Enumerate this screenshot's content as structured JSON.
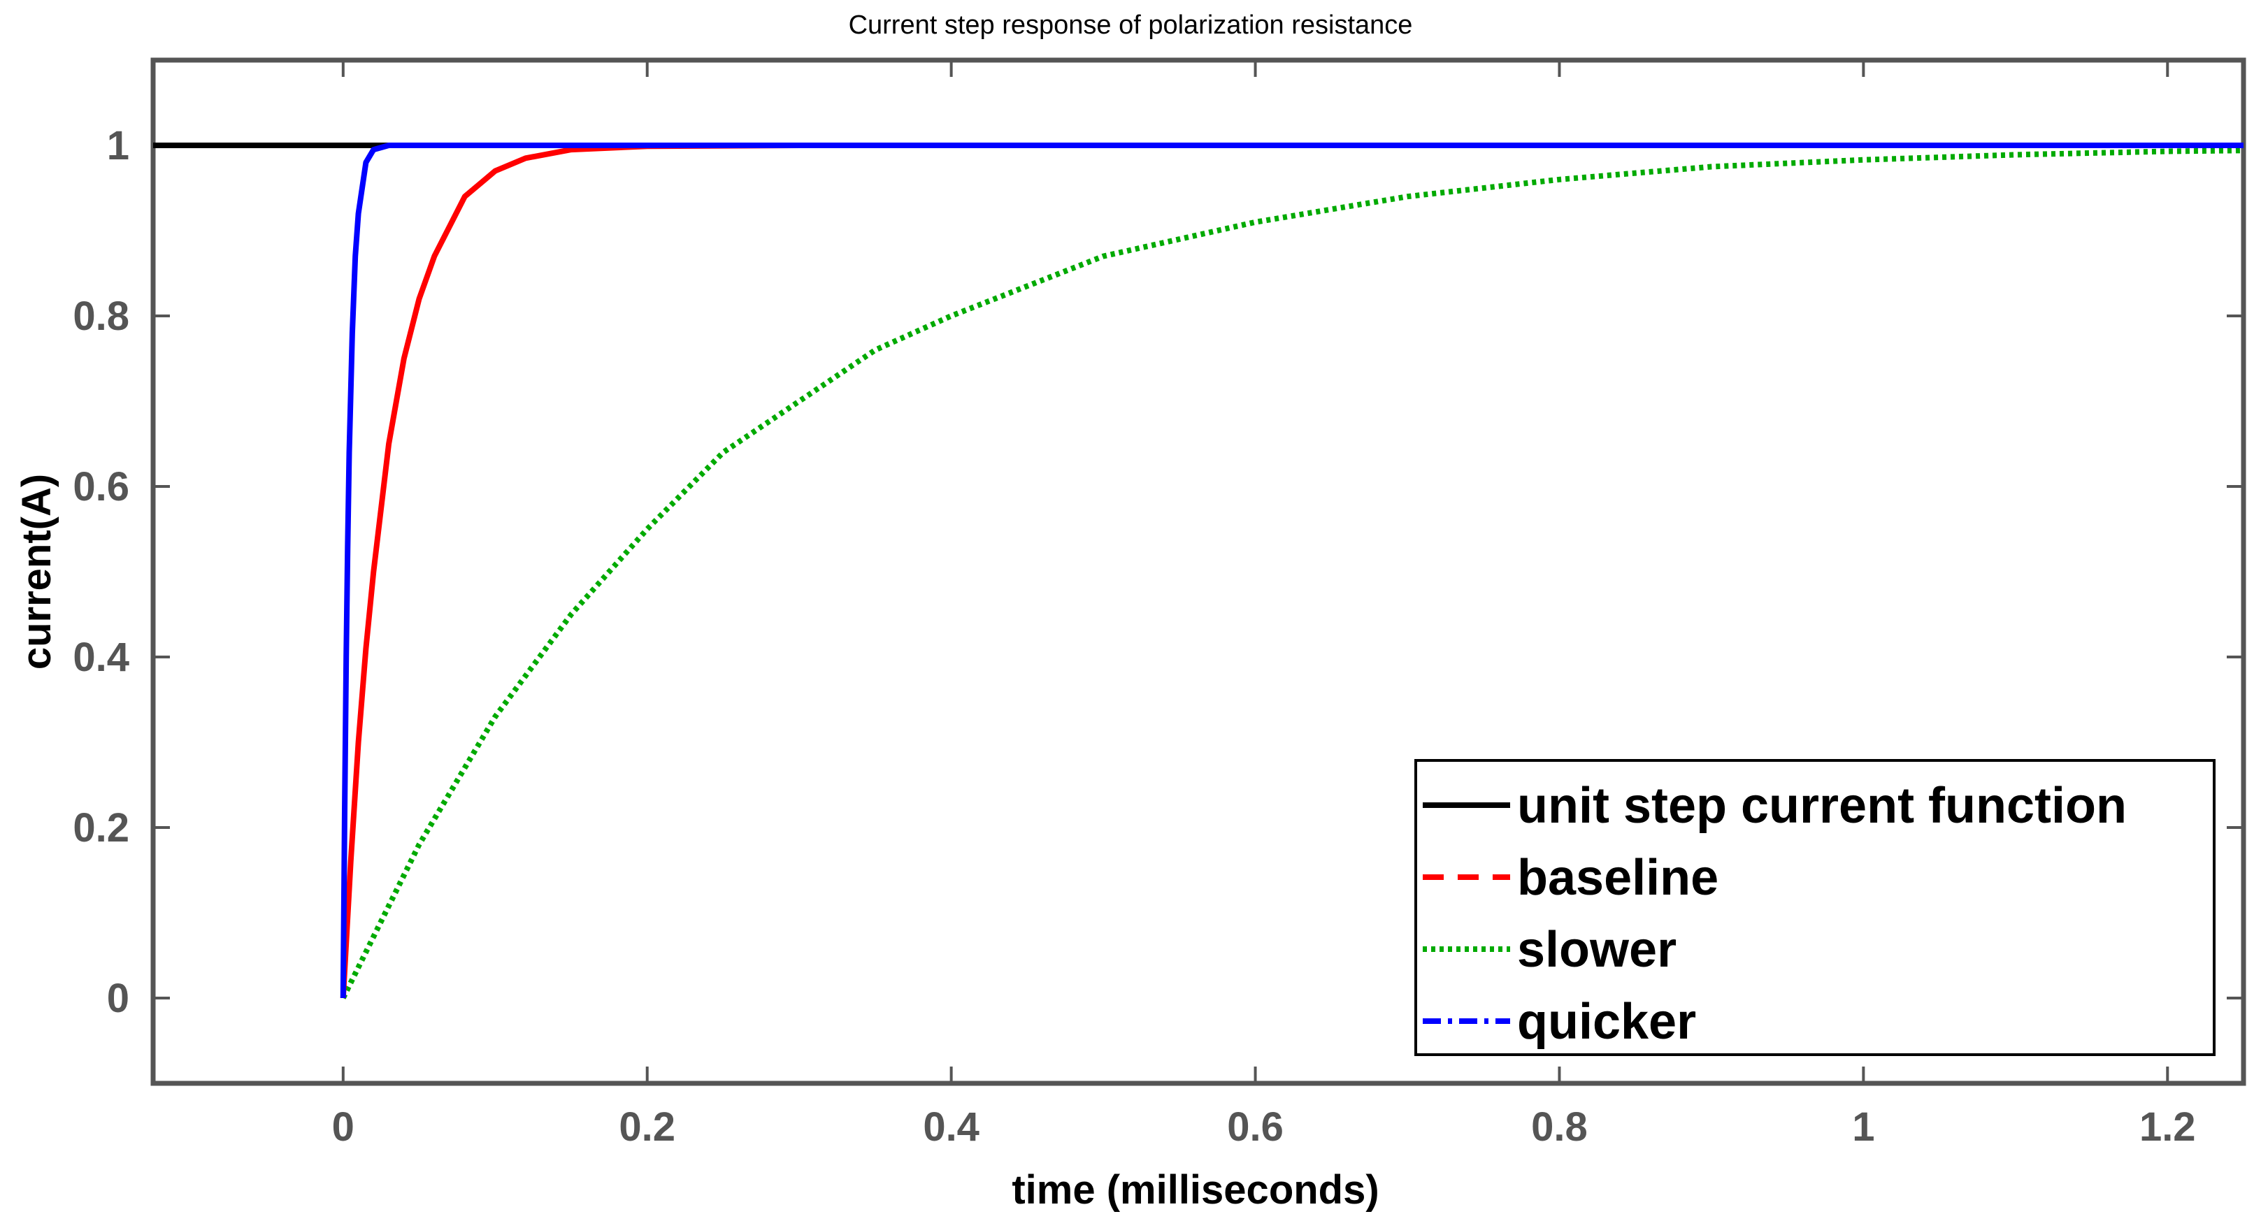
{
  "chart_data": {
    "type": "line",
    "title": "Current step response of polarization resistance",
    "xlabel": "time (milliseconds)",
    "ylabel": "current(A)",
    "xlim": [
      -0.125,
      1.25
    ],
    "ylim": [
      -0.1,
      1.1
    ],
    "xticks": [
      0,
      0.2,
      0.4,
      0.6,
      0.8,
      1,
      1.2
    ],
    "xtick_labels": [
      "0",
      "0.2",
      "0.4",
      "0.6",
      "0.8",
      "1",
      "1.2"
    ],
    "yticks": [
      0,
      0.2,
      0.4,
      0.6,
      0.8,
      1
    ],
    "ytick_labels": [
      "0",
      "0.2",
      "0.4",
      "0.6",
      "0.8",
      "1"
    ],
    "grid": false,
    "legend_position": "bottom-right",
    "series": [
      {
        "name": "unit step current function",
        "color": "#000000",
        "style": "solid",
        "x": [
          -0.125,
          1.25
        ],
        "y": [
          1,
          1
        ]
      },
      {
        "name": "baseline",
        "color": "#ff0000",
        "style": "solid",
        "x": [
          0,
          0.005,
          0.01,
          0.015,
          0.02,
          0.03,
          0.04,
          0.05,
          0.06,
          0.08,
          0.1,
          0.12,
          0.15,
          0.2,
          0.3,
          1.25
        ],
        "y": [
          0,
          0.16,
          0.3,
          0.41,
          0.5,
          0.65,
          0.75,
          0.82,
          0.87,
          0.94,
          0.97,
          0.985,
          0.995,
          0.999,
          1,
          1
        ]
      },
      {
        "name": "slower",
        "color": "#00aa00",
        "style": "dotted",
        "x": [
          0,
          0.05,
          0.1,
          0.15,
          0.2,
          0.25,
          0.3,
          0.35,
          0.4,
          0.5,
          0.6,
          0.7,
          0.8,
          0.9,
          1.0,
          1.1,
          1.2,
          1.25
        ],
        "y": [
          0,
          0.18,
          0.33,
          0.45,
          0.55,
          0.64,
          0.7,
          0.76,
          0.8,
          0.87,
          0.91,
          0.94,
          0.96,
          0.975,
          0.983,
          0.989,
          0.993,
          0.994
        ]
      },
      {
        "name": "quicker",
        "color": "#0000ff",
        "style": "solid",
        "x": [
          0,
          0.001,
          0.002,
          0.003,
          0.004,
          0.006,
          0.008,
          0.01,
          0.015,
          0.02,
          0.03,
          1.25
        ],
        "y": [
          0,
          0.22,
          0.4,
          0.53,
          0.64,
          0.78,
          0.87,
          0.92,
          0.98,
          0.995,
          1,
          1
        ]
      }
    ]
  }
}
